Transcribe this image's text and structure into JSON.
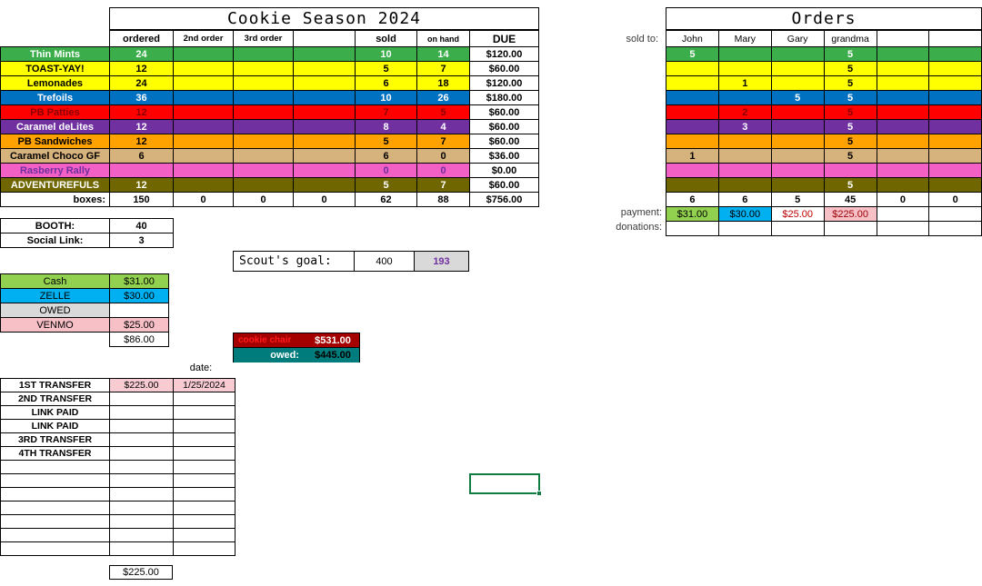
{
  "main": {
    "title": "Cookie Season 2024",
    "col_headers": [
      "ordered",
      "2nd order",
      "3rd order",
      "",
      "sold",
      "on hand",
      "DUE"
    ],
    "rows": [
      {
        "name": "Thin Mints",
        "bg": "#3BAD4A",
        "fg": "#FFFFFF",
        "cells": [
          "24",
          "",
          "",
          "",
          "10",
          "14"
        ],
        "due": "$120.00"
      },
      {
        "name": "TOAST-YAY!",
        "bg": "#FFFF00",
        "fg": "#000000",
        "cells": [
          "12",
          "",
          "",
          "",
          "5",
          "7"
        ],
        "due": "$60.00"
      },
      {
        "name": "Lemonades",
        "bg": "#FFFF00",
        "fg": "#000000",
        "cells": [
          "24",
          "",
          "",
          "",
          "6",
          "18"
        ],
        "due": "$120.00"
      },
      {
        "name": "Trefoils",
        "bg": "#0070C0",
        "fg": "#FFFFFF",
        "cells": [
          "36",
          "",
          "",
          "",
          "10",
          "26"
        ],
        "due": "$180.00"
      },
      {
        "name": "PB Patties",
        "bg": "#FF0000",
        "fg": "#8B0000",
        "cells": [
          "12",
          "",
          "",
          "",
          "7",
          "5"
        ],
        "due": "$60.00"
      },
      {
        "name": "Caramel deLites",
        "bg": "#7030A0",
        "fg": "#FFFFFF",
        "cells": [
          "12",
          "",
          "",
          "",
          "8",
          "4"
        ],
        "due": "$60.00"
      },
      {
        "name": "PB Sandwiches",
        "bg": "#FFA200",
        "fg": "#000000",
        "cells": [
          "12",
          "",
          "",
          "",
          "5",
          "7"
        ],
        "due": "$60.00"
      },
      {
        "name": "Caramel Choco GF",
        "bg": "#D6B27C",
        "fg": "#000000",
        "cells": [
          "6",
          "",
          "",
          "",
          "6",
          "0"
        ],
        "due": "$36.00"
      },
      {
        "name": "Rasberry Rally",
        "bg": "#F25FC5",
        "fg": "#7030A0",
        "cells": [
          "",
          "",
          "",
          "",
          "0",
          "0"
        ],
        "due": "$0.00"
      },
      {
        "name": "ADVENTUREFULS",
        "bg": "#6F6600",
        "fg": "#FFFFFF",
        "cells": [
          "12",
          "",
          "",
          "",
          "5",
          "7"
        ],
        "due": "$60.00"
      }
    ],
    "totals_row": {
      "label": "boxes:",
      "cells": [
        "150",
        "0",
        "0",
        "0",
        "62",
        "88"
      ],
      "due": "$756.00"
    }
  },
  "booth": {
    "rows": [
      {
        "label": "BOOTH:",
        "value": "40"
      },
      {
        "label": "Social Link:",
        "value": "3"
      }
    ]
  },
  "payment_summary": {
    "rows": [
      {
        "label": "Cash",
        "value": "$31.00",
        "bg": "#92D050"
      },
      {
        "label": "ZELLE",
        "value": "$30.00",
        "bg": "#00B0F0"
      },
      {
        "label": "OWED",
        "value": "",
        "bg": "#D9D9D9",
        "value_bg": "#FFFFFF"
      },
      {
        "label": "VENMO",
        "value": "$25.00",
        "bg": "#F7BFC6"
      }
    ],
    "total": "$86.00"
  },
  "scout_goal": {
    "label": "Scout's goal:",
    "target": "400",
    "progress": "193",
    "progress_bg": "#D9D9D9",
    "progress_fg": "#7030A0"
  },
  "cookie_chair": {
    "row1": {
      "label": "cookie chair",
      "value": "$531.00",
      "bg": "#A40000",
      "label_fg": "#FF1A1A",
      "value_fg": "#FFFFFF"
    },
    "row2": {
      "label": "owed:",
      "value": "$445.00",
      "bg": "#007C7C",
      "label_fg": "#FFFFFF",
      "value_fg": "#000000"
    }
  },
  "transfers": {
    "date_label": "date:",
    "highlight_bg": "#F7CBD1",
    "rows": [
      {
        "label": "1ST TRANSFER",
        "value": "$225.00",
        "date": "1/25/2024",
        "highlight": true
      },
      {
        "label": "2ND TRANSFER",
        "value": "",
        "date": ""
      },
      {
        "label": "LINK PAID",
        "value": "",
        "date": ""
      },
      {
        "label": "LINK PAID",
        "value": "",
        "date": ""
      },
      {
        "label": "3RD TRANSFER",
        "value": "",
        "date": ""
      },
      {
        "label": "4TH TRANSFER",
        "value": "",
        "date": ""
      },
      {
        "label": "",
        "value": "",
        "date": ""
      },
      {
        "label": "",
        "value": "",
        "date": ""
      },
      {
        "label": "",
        "value": "",
        "date": ""
      },
      {
        "label": "",
        "value": "",
        "date": ""
      },
      {
        "label": "",
        "value": "",
        "date": ""
      },
      {
        "label": "",
        "value": "",
        "date": ""
      },
      {
        "label": "",
        "value": "",
        "date": ""
      }
    ],
    "total": "$225.00"
  },
  "orders": {
    "title": "Orders",
    "sold_to_label": "sold to:",
    "payment_label": "payment:",
    "donations_label": "donations:",
    "headers": [
      "John",
      "Mary",
      "Gary",
      "grandma",
      "",
      ""
    ],
    "rows": [
      {
        "bg": "#3BAD4A",
        "fg": "#FFFFFF",
        "values": [
          "5",
          "",
          "",
          "5",
          "",
          ""
        ]
      },
      {
        "bg": "#FFFF00",
        "fg": "#000000",
        "values": [
          "",
          "",
          "",
          "5",
          "",
          ""
        ]
      },
      {
        "bg": "#FFFF00",
        "fg": "#000000",
        "values": [
          "",
          "1",
          "",
          "5",
          "",
          ""
        ]
      },
      {
        "bg": "#0070C0",
        "fg": "#FFFFFF",
        "values": [
          "",
          "",
          "5",
          "5",
          "",
          ""
        ]
      },
      {
        "bg": "#FF0000",
        "fg": "#8B0000",
        "values": [
          "",
          "2",
          "",
          "5",
          "",
          ""
        ]
      },
      {
        "bg": "#7030A0",
        "fg": "#FFFFFF",
        "values": [
          "",
          "3",
          "",
          "5",
          "",
          ""
        ]
      },
      {
        "bg": "#FFA200",
        "fg": "#000000",
        "values": [
          "",
          "",
          "",
          "5",
          "",
          ""
        ]
      },
      {
        "bg": "#D6B27C",
        "fg": "#000000",
        "values": [
          "1",
          "",
          "",
          "5",
          "",
          ""
        ]
      },
      {
        "bg": "#F25FC5",
        "fg": "#7030A0",
        "values": [
          "",
          "",
          "",
          "",
          "",
          ""
        ]
      },
      {
        "bg": "#6F6600",
        "fg": "#FFFFFF",
        "values": [
          "",
          "",
          "",
          "5",
          "",
          ""
        ]
      }
    ],
    "totals": [
      "6",
      "6",
      "5",
      "45",
      "0",
      "0"
    ],
    "payments": [
      {
        "value": "$31.00",
        "bg": "#92D050",
        "fg": "#000000"
      },
      {
        "value": "$30.00",
        "bg": "#00B0F0",
        "fg": "#000000"
      },
      {
        "value": "$25.00",
        "bg": "#FFFFFF",
        "fg": "#C00000"
      },
      {
        "value": "$225.00",
        "bg": "#F7BFC6",
        "fg": "#9C0006"
      },
      {
        "value": "",
        "bg": "",
        "fg": ""
      },
      {
        "value": "",
        "bg": "",
        "fg": ""
      }
    ]
  }
}
